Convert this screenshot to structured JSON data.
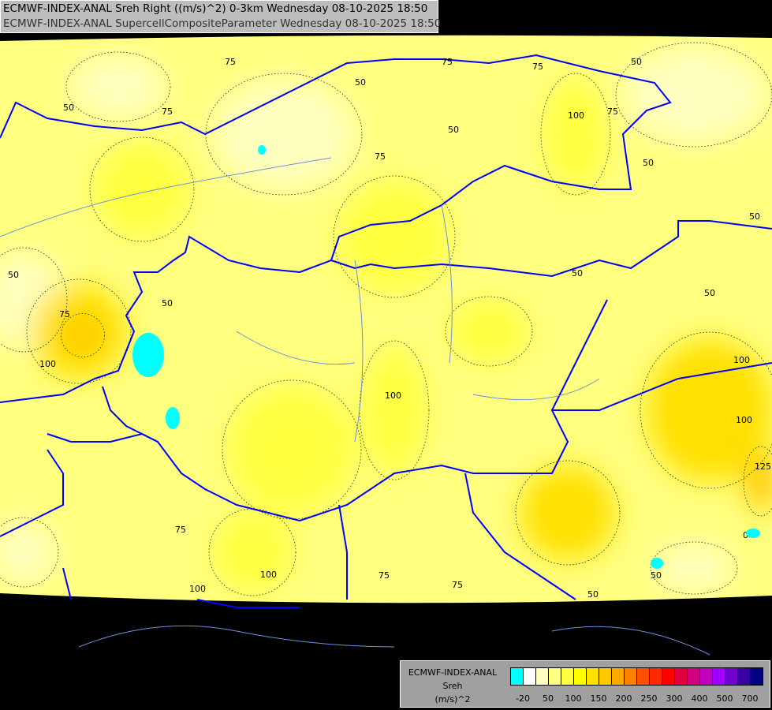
{
  "title": {
    "line1": "ECMWF-INDEX-ANAL Sreh Right ((m/s)^2) 0-3km Wednesday 08-10-2025 18:50",
    "line2": "ECMWF-INDEX-ANAL SupercellCompositeParameter Wednesday 08-10-2025 18:50"
  },
  "legend": {
    "model": "ECMWF-INDEX-ANAL",
    "variable": "Sreh",
    "unit": "(m/s)^2",
    "colors": [
      "#00ffff",
      "#ffffff",
      "#ffffc0",
      "#ffff80",
      "#ffff40",
      "#ffff00",
      "#ffe000",
      "#ffc800",
      "#ffa800",
      "#ff8000",
      "#ff5000",
      "#ff2800",
      "#ff0000",
      "#e00040",
      "#d00080",
      "#c000c0",
      "#a000ff",
      "#7000d0",
      "#3800a0",
      "#000080"
    ],
    "ticks": [
      "-20",
      "50",
      "100",
      "150",
      "200",
      "250",
      "300",
      "400",
      "500",
      "700"
    ]
  },
  "map": {
    "background_color": "#ffff80",
    "border_color": "#0000ff",
    "river_color": "#6f8fe0",
    "contour_labels": [
      "75",
      "50",
      "75",
      "50",
      "75",
      "75",
      "50",
      "100",
      "75",
      "50",
      "75",
      "50",
      "50",
      "50",
      "50",
      "75",
      "100",
      "50",
      "100",
      "100",
      "100",
      "125",
      "0",
      "50",
      "50",
      "75",
      "100",
      "100",
      "75",
      "50",
      "75"
    ]
  }
}
